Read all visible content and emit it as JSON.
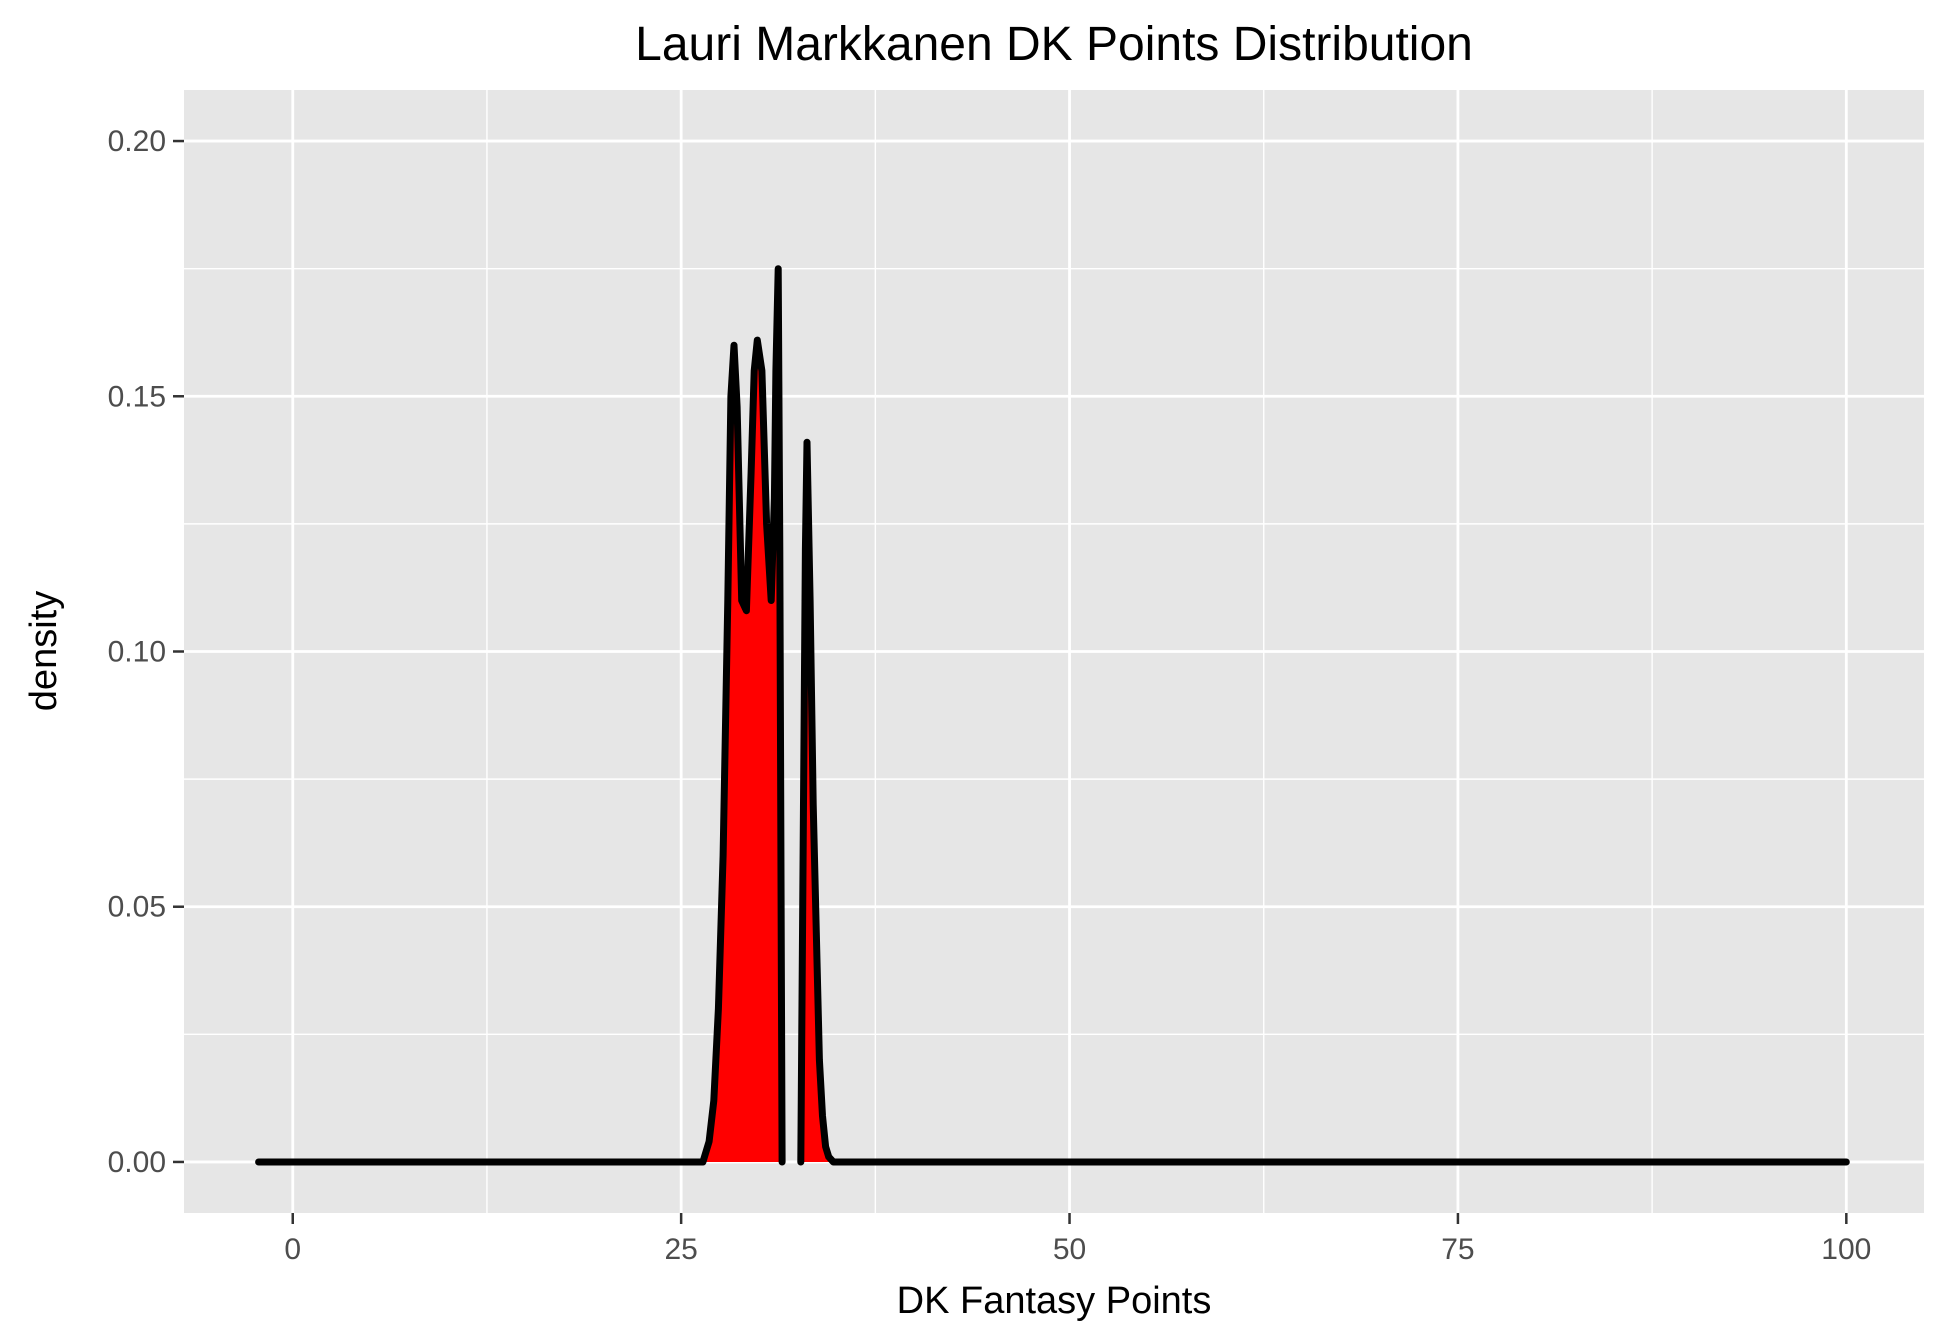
{
  "chart_data": {
    "type": "area",
    "title": "Lauri Markkanen DK Points Distribution",
    "xlabel": "DK Fantasy Points",
    "ylabel": "density",
    "xlim": [
      -7,
      105
    ],
    "ylim": [
      -0.01,
      0.21
    ],
    "x_ticks": [
      0,
      25,
      50,
      75,
      100
    ],
    "x_tick_labels": [
      "0",
      "25",
      "50",
      "75",
      "100"
    ],
    "y_ticks": [
      0.0,
      0.05,
      0.1,
      0.15,
      0.2
    ],
    "y_tick_labels": [
      "0.00",
      "0.05",
      "0.10",
      "0.15",
      "0.20"
    ],
    "grid": true,
    "colors": {
      "panel": "#e6e6e6",
      "grid": "#ffffff",
      "fill": "#ff0000",
      "line": "#000000"
    },
    "series": [
      {
        "segment": 1,
        "x": [
          -2.2,
          26.4,
          26.8,
          27.1,
          27.4,
          27.7,
          28.0,
          28.2,
          28.4,
          28.6,
          28.9,
          29.2,
          29.5,
          29.7,
          29.9,
          30.2,
          30.5,
          30.8,
          31.0,
          31.1,
          31.25,
          31.35,
          31.45,
          31.5
        ],
        "y": [
          0,
          0,
          0.004,
          0.012,
          0.03,
          0.06,
          0.11,
          0.15,
          0.16,
          0.148,
          0.11,
          0.108,
          0.135,
          0.155,
          0.161,
          0.155,
          0.125,
          0.11,
          0.13,
          0.155,
          0.175,
          0.12,
          0.04,
          0
        ]
      },
      {
        "segment": 2,
        "x": [
          32.7,
          33.0,
          33.1,
          33.3,
          33.5,
          33.7,
          33.9,
          34.1,
          34.3,
          34.5,
          34.8,
          100.0
        ],
        "y": [
          0,
          0.12,
          0.141,
          0.11,
          0.07,
          0.045,
          0.02,
          0.009,
          0.003,
          0.001,
          0,
          0
        ]
      }
    ]
  }
}
